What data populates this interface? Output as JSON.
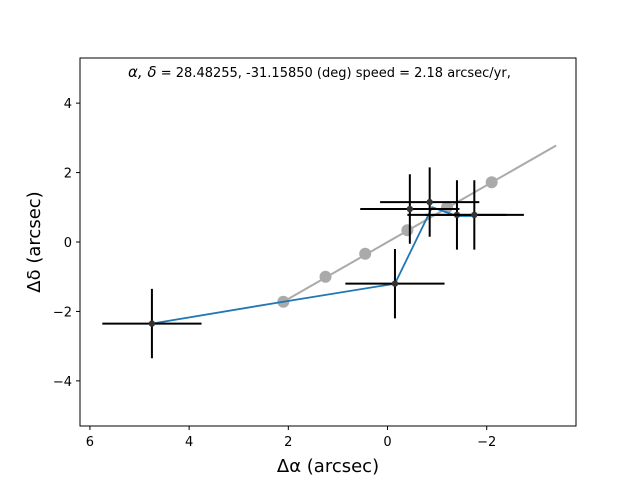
{
  "chart_data": {
    "type": "scatter",
    "title": "α, δ = 28.48255, -31.15850 (deg)    speed = 2.18 arcsec/yr,",
    "title_symbols": "α, δ",
    "title_rest": " = 28.48255, -31.15850 (deg)    speed = 2.18 arcsec/yr,",
    "xlabel": "Δα (arcsec)",
    "ylabel": "Δδ (arcsec)",
    "xlim": [
      6.2,
      -3.8
    ],
    "ylim": [
      -5.3,
      5.3
    ],
    "x_inverted": true,
    "xticks": [
      6,
      4,
      2,
      0,
      -2
    ],
    "xtick_labels": [
      "6",
      "4",
      "2",
      "0",
      "−2"
    ],
    "yticks": [
      -4,
      -2,
      0,
      2,
      4
    ],
    "ytick_labels": [
      "−4",
      "−2",
      "0",
      "2",
      "4"
    ],
    "colors": {
      "model_line": "#aaaaaa",
      "model_points": "#aaaaaa",
      "observed_line": "#1f77b4",
      "observations": "#000000",
      "observation_markers": "#333333"
    },
    "series": [
      {
        "kind": "model-line",
        "x": [
          2.1,
          -3.4
        ],
        "y": [
          -1.72,
          2.78
        ]
      },
      {
        "kind": "model-points",
        "x": [
          2.1,
          1.25,
          0.45,
          -0.4,
          -1.2,
          -2.1
        ],
        "y": [
          -1.72,
          -1.0,
          -0.34,
          0.34,
          1.0,
          1.72
        ]
      },
      {
        "kind": "observed-path",
        "x": [
          4.75,
          2.1,
          -0.15,
          -0.9,
          -1.4,
          -1.75
        ],
        "y": [
          -2.35,
          -1.72,
          -1.2,
          1.0,
          0.75,
          0.75
        ]
      },
      {
        "kind": "observations",
        "x": [
          4.75,
          -0.15,
          -0.45,
          -0.85,
          -1.4,
          -1.75
        ],
        "y": [
          -2.35,
          -1.2,
          0.95,
          1.15,
          0.78,
          0.78
        ],
        "xerr": [
          1.0,
          1.0,
          1.0,
          1.0,
          1.0,
          1.0
        ],
        "yerr": [
          1.0,
          1.0,
          1.0,
          1.0,
          1.0,
          1.0
        ]
      }
    ],
    "grid": false,
    "legend": "none"
  }
}
